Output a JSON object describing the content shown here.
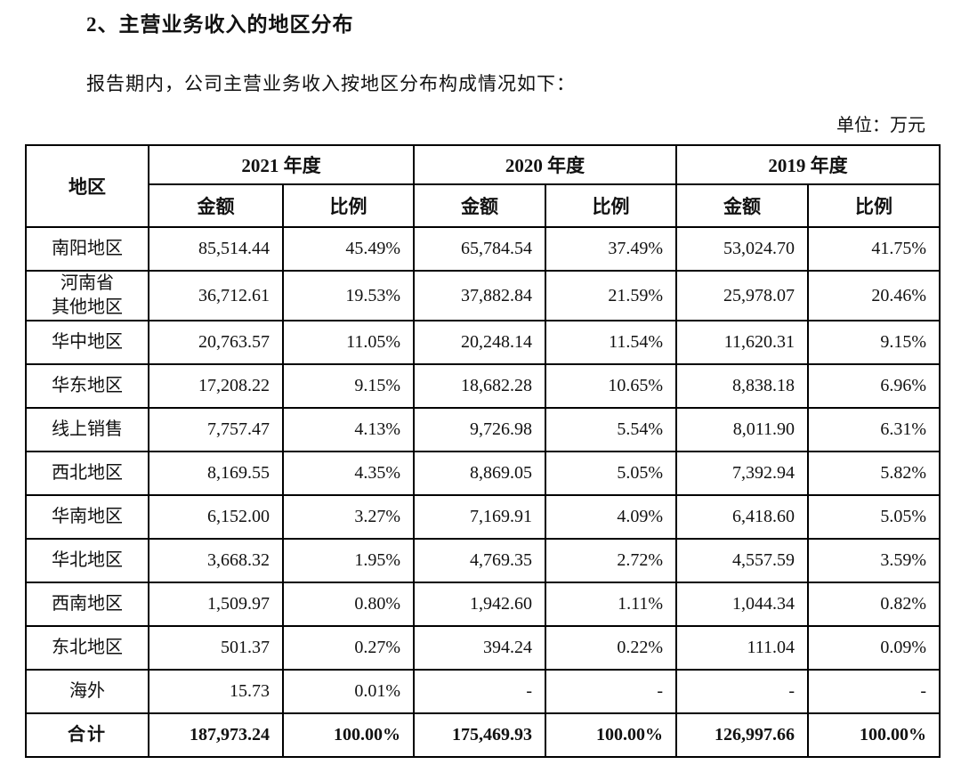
{
  "page": {
    "heading": "2、主营业务收入的地区分布",
    "intro": "报告期内，公司主营业务收入按地区分布构成情况如下：",
    "unit_note": "单位：万元"
  },
  "table": {
    "region_header": "地区",
    "year_headers": [
      "2021 年度",
      "2020 年度",
      "2019 年度"
    ],
    "sub_headers": {
      "amount": "金额",
      "ratio": "比例"
    },
    "rows": [
      {
        "region": "南阳地区",
        "values": [
          "85,514.44",
          "45.49%",
          "65,784.54",
          "37.49%",
          "53,024.70",
          "41.75%"
        ]
      },
      {
        "region": "河南省\n其他地区",
        "values": [
          "36,712.61",
          "19.53%",
          "37,882.84",
          "21.59%",
          "25,978.07",
          "20.46%"
        ]
      },
      {
        "region": "华中地区",
        "values": [
          "20,763.57",
          "11.05%",
          "20,248.14",
          "11.54%",
          "11,620.31",
          "9.15%"
        ]
      },
      {
        "region": "华东地区",
        "values": [
          "17,208.22",
          "9.15%",
          "18,682.28",
          "10.65%",
          "8,838.18",
          "6.96%"
        ]
      },
      {
        "region": "线上销售",
        "values": [
          "7,757.47",
          "4.13%",
          "9,726.98",
          "5.54%",
          "8,011.90",
          "6.31%"
        ]
      },
      {
        "region": "西北地区",
        "values": [
          "8,169.55",
          "4.35%",
          "8,869.05",
          "5.05%",
          "7,392.94",
          "5.82%"
        ]
      },
      {
        "region": "华南地区",
        "values": [
          "6,152.00",
          "3.27%",
          "7,169.91",
          "4.09%",
          "6,418.60",
          "5.05%"
        ]
      },
      {
        "region": "华北地区",
        "values": [
          "3,668.32",
          "1.95%",
          "4,769.35",
          "2.72%",
          "4,557.59",
          "3.59%"
        ]
      },
      {
        "region": "西南地区",
        "values": [
          "1,509.97",
          "0.80%",
          "1,942.60",
          "1.11%",
          "1,044.34",
          "0.82%"
        ]
      },
      {
        "region": "东北地区",
        "values": [
          "501.37",
          "0.27%",
          "394.24",
          "0.22%",
          "111.04",
          "0.09%"
        ]
      },
      {
        "region": "海外",
        "values": [
          "15.73",
          "0.01%",
          "-",
          "-",
          "-",
          "-"
        ]
      }
    ],
    "total_row": {
      "region": "合计",
      "values": [
        "187,973.24",
        "100.00%",
        "175,469.93",
        "100.00%",
        "126,997.66",
        "100.00%"
      ]
    }
  },
  "colors": {
    "text": "#111111",
    "border": "#000000",
    "background": "#ffffff"
  }
}
